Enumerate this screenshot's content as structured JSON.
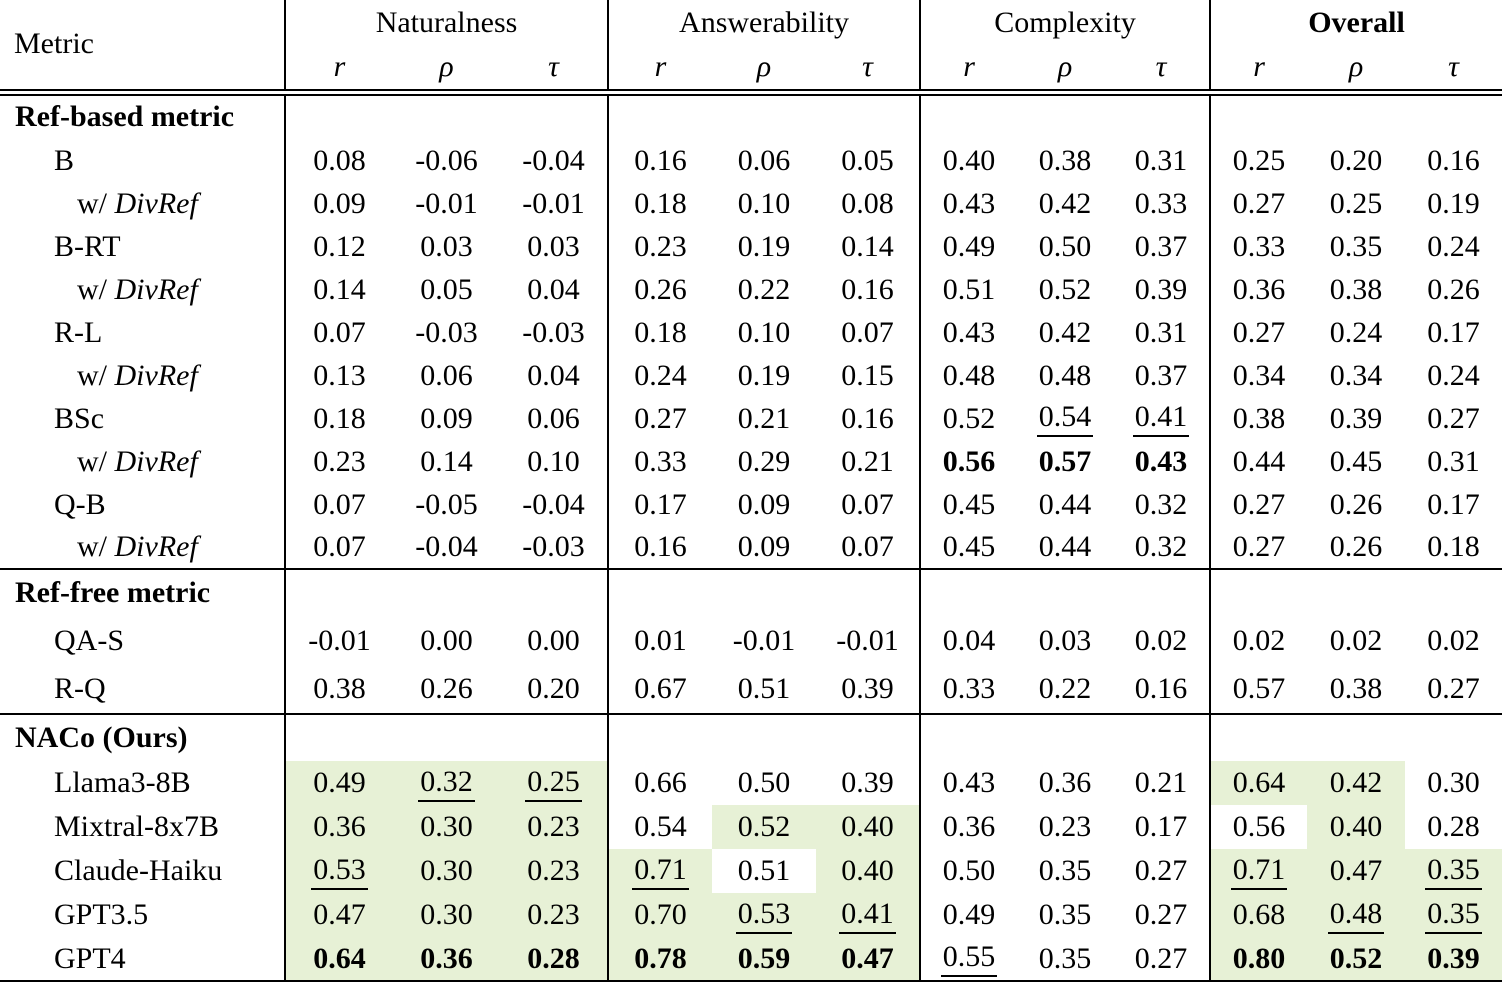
{
  "colors": {
    "highlight": "#e7f1d6",
    "text": "#000000",
    "rule": "#000000"
  },
  "header": {
    "metric_label": "Metric",
    "groups": [
      {
        "label": "Naturalness",
        "bold": false
      },
      {
        "label": "Answerability",
        "bold": false
      },
      {
        "label": "Complexity",
        "bold": false
      },
      {
        "label": "Overall",
        "bold": true
      }
    ],
    "subcols": [
      "r",
      "ρ",
      "τ"
    ]
  },
  "sections": [
    {
      "title": "Ref-based metric",
      "rows": [
        {
          "label": "B",
          "indent": 1,
          "cells": [
            {
              "v": "0.08"
            },
            {
              "v": "-0.06"
            },
            {
              "v": "-0.04"
            },
            {
              "v": "0.16"
            },
            {
              "v": "0.06"
            },
            {
              "v": "0.05"
            },
            {
              "v": "0.40"
            },
            {
              "v": "0.38"
            },
            {
              "v": "0.31"
            },
            {
              "v": "0.25"
            },
            {
              "v": "0.20"
            },
            {
              "v": "0.16"
            }
          ]
        },
        {
          "label_prefix": "w/",
          "label": "DivRef",
          "indent": 2,
          "cells": [
            {
              "v": "0.09"
            },
            {
              "v": "-0.01"
            },
            {
              "v": "-0.01"
            },
            {
              "v": "0.18"
            },
            {
              "v": "0.10"
            },
            {
              "v": "0.08"
            },
            {
              "v": "0.43"
            },
            {
              "v": "0.42"
            },
            {
              "v": "0.33"
            },
            {
              "v": "0.27"
            },
            {
              "v": "0.25"
            },
            {
              "v": "0.19"
            }
          ]
        },
        {
          "label": "B-RT",
          "indent": 1,
          "cells": [
            {
              "v": "0.12"
            },
            {
              "v": "0.03"
            },
            {
              "v": "0.03"
            },
            {
              "v": "0.23"
            },
            {
              "v": "0.19"
            },
            {
              "v": "0.14"
            },
            {
              "v": "0.49"
            },
            {
              "v": "0.50"
            },
            {
              "v": "0.37"
            },
            {
              "v": "0.33"
            },
            {
              "v": "0.35"
            },
            {
              "v": "0.24"
            }
          ]
        },
        {
          "label_prefix": "w/",
          "label": "DivRef",
          "indent": 2,
          "cells": [
            {
              "v": "0.14"
            },
            {
              "v": "0.05"
            },
            {
              "v": "0.04"
            },
            {
              "v": "0.26"
            },
            {
              "v": "0.22"
            },
            {
              "v": "0.16"
            },
            {
              "v": "0.51"
            },
            {
              "v": "0.52"
            },
            {
              "v": "0.39"
            },
            {
              "v": "0.36"
            },
            {
              "v": "0.38"
            },
            {
              "v": "0.26"
            }
          ]
        },
        {
          "label": "R-L",
          "indent": 1,
          "cells": [
            {
              "v": "0.07"
            },
            {
              "v": "-0.03"
            },
            {
              "v": "-0.03"
            },
            {
              "v": "0.18"
            },
            {
              "v": "0.10"
            },
            {
              "v": "0.07"
            },
            {
              "v": "0.43"
            },
            {
              "v": "0.42"
            },
            {
              "v": "0.31"
            },
            {
              "v": "0.27"
            },
            {
              "v": "0.24"
            },
            {
              "v": "0.17"
            }
          ]
        },
        {
          "label_prefix": "w/",
          "label": "DivRef",
          "indent": 2,
          "cells": [
            {
              "v": "0.13"
            },
            {
              "v": "0.06"
            },
            {
              "v": "0.04"
            },
            {
              "v": "0.24"
            },
            {
              "v": "0.19"
            },
            {
              "v": "0.15"
            },
            {
              "v": "0.48"
            },
            {
              "v": "0.48"
            },
            {
              "v": "0.37"
            },
            {
              "v": "0.34"
            },
            {
              "v": "0.34"
            },
            {
              "v": "0.24"
            }
          ]
        },
        {
          "label": "BSc",
          "indent": 1,
          "cells": [
            {
              "v": "0.18"
            },
            {
              "v": "0.09"
            },
            {
              "v": "0.06"
            },
            {
              "v": "0.27"
            },
            {
              "v": "0.21"
            },
            {
              "v": "0.16"
            },
            {
              "v": "0.52"
            },
            {
              "v": "0.54",
              "u": true
            },
            {
              "v": "0.41",
              "u": true
            },
            {
              "v": "0.38"
            },
            {
              "v": "0.39"
            },
            {
              "v": "0.27"
            }
          ]
        },
        {
          "label_prefix": "w/",
          "label": "DivRef",
          "indent": 2,
          "cells": [
            {
              "v": "0.23"
            },
            {
              "v": "0.14"
            },
            {
              "v": "0.10"
            },
            {
              "v": "0.33"
            },
            {
              "v": "0.29"
            },
            {
              "v": "0.21"
            },
            {
              "v": "0.56",
              "b": true
            },
            {
              "v": "0.57",
              "b": true
            },
            {
              "v": "0.43",
              "b": true
            },
            {
              "v": "0.44"
            },
            {
              "v": "0.45"
            },
            {
              "v": "0.31"
            }
          ]
        },
        {
          "label": "Q-B",
          "indent": 1,
          "cells": [
            {
              "v": "0.07"
            },
            {
              "v": "-0.05"
            },
            {
              "v": "-0.04"
            },
            {
              "v": "0.17"
            },
            {
              "v": "0.09"
            },
            {
              "v": "0.07"
            },
            {
              "v": "0.45"
            },
            {
              "v": "0.44"
            },
            {
              "v": "0.32"
            },
            {
              "v": "0.27"
            },
            {
              "v": "0.26"
            },
            {
              "v": "0.17"
            }
          ]
        },
        {
          "label_prefix": "w/",
          "label": "DivRef",
          "indent": 2,
          "cells": [
            {
              "v": "0.07"
            },
            {
              "v": "-0.04"
            },
            {
              "v": "-0.03"
            },
            {
              "v": "0.16"
            },
            {
              "v": "0.09"
            },
            {
              "v": "0.07"
            },
            {
              "v": "0.45"
            },
            {
              "v": "0.44"
            },
            {
              "v": "0.32"
            },
            {
              "v": "0.27"
            },
            {
              "v": "0.26"
            },
            {
              "v": "0.18"
            }
          ]
        }
      ]
    },
    {
      "title": "Ref-free metric",
      "rows": [
        {
          "label": "QA-S",
          "indent": 1,
          "cells": [
            {
              "v": "-0.01"
            },
            {
              "v": "0.00"
            },
            {
              "v": "0.00"
            },
            {
              "v": "0.01"
            },
            {
              "v": "-0.01"
            },
            {
              "v": "-0.01"
            },
            {
              "v": "0.04"
            },
            {
              "v": "0.03"
            },
            {
              "v": "0.02"
            },
            {
              "v": "0.02"
            },
            {
              "v": "0.02"
            },
            {
              "v": "0.02"
            }
          ]
        },
        {
          "label": "R-Q",
          "indent": 1,
          "cells": [
            {
              "v": "0.38"
            },
            {
              "v": "0.26"
            },
            {
              "v": "0.20"
            },
            {
              "v": "0.67"
            },
            {
              "v": "0.51"
            },
            {
              "v": "0.39"
            },
            {
              "v": "0.33"
            },
            {
              "v": "0.22"
            },
            {
              "v": "0.16"
            },
            {
              "v": "0.57"
            },
            {
              "v": "0.38"
            },
            {
              "v": "0.27"
            }
          ]
        }
      ]
    },
    {
      "title": "NACo (Ours)",
      "rows": [
        {
          "label": "Llama3-8B",
          "indent": 1,
          "cells": [
            {
              "v": "0.49",
              "h": true
            },
            {
              "v": "0.32",
              "u": true,
              "h": true
            },
            {
              "v": "0.25",
              "u": true,
              "h": true
            },
            {
              "v": "0.66"
            },
            {
              "v": "0.50"
            },
            {
              "v": "0.39"
            },
            {
              "v": "0.43"
            },
            {
              "v": "0.36"
            },
            {
              "v": "0.21"
            },
            {
              "v": "0.64",
              "h": true
            },
            {
              "v": "0.42",
              "h": true
            },
            {
              "v": "0.30"
            }
          ]
        },
        {
          "label": "Mixtral-8x7B",
          "indent": 1,
          "cells": [
            {
              "v": "0.36",
              "h": true
            },
            {
              "v": "0.30",
              "h": true
            },
            {
              "v": "0.23",
              "h": true
            },
            {
              "v": "0.54"
            },
            {
              "v": "0.52",
              "h": true
            },
            {
              "v": "0.40",
              "h": true
            },
            {
              "v": "0.36"
            },
            {
              "v": "0.23"
            },
            {
              "v": "0.17"
            },
            {
              "v": "0.56"
            },
            {
              "v": "0.40",
              "h": true
            },
            {
              "v": "0.28"
            }
          ]
        },
        {
          "label": "Claude-Haiku",
          "indent": 1,
          "cells": [
            {
              "v": "0.53",
              "u": true,
              "h": true
            },
            {
              "v": "0.30",
              "h": true
            },
            {
              "v": "0.23",
              "h": true
            },
            {
              "v": "0.71",
              "u": true,
              "h": true
            },
            {
              "v": "0.51"
            },
            {
              "v": "0.40",
              "h": true
            },
            {
              "v": "0.50"
            },
            {
              "v": "0.35"
            },
            {
              "v": "0.27"
            },
            {
              "v": "0.71",
              "u": true,
              "h": true
            },
            {
              "v": "0.47",
              "h": true
            },
            {
              "v": "0.35",
              "u": true,
              "h": true
            }
          ]
        },
        {
          "label": "GPT3.5",
          "indent": 1,
          "cells": [
            {
              "v": "0.47",
              "h": true
            },
            {
              "v": "0.30",
              "h": true
            },
            {
              "v": "0.23",
              "h": true
            },
            {
              "v": "0.70",
              "h": true
            },
            {
              "v": "0.53",
              "u": true,
              "h": true
            },
            {
              "v": "0.41",
              "u": true,
              "h": true
            },
            {
              "v": "0.49"
            },
            {
              "v": "0.35"
            },
            {
              "v": "0.27"
            },
            {
              "v": "0.68",
              "h": true
            },
            {
              "v": "0.48",
              "u": true,
              "h": true
            },
            {
              "v": "0.35",
              "u": true,
              "h": true
            }
          ]
        },
        {
          "label": "GPT4",
          "indent": 1,
          "cells": [
            {
              "v": "0.64",
              "b": true,
              "h": true
            },
            {
              "v": "0.36",
              "b": true,
              "h": true
            },
            {
              "v": "0.28",
              "b": true,
              "h": true
            },
            {
              "v": "0.78",
              "b": true,
              "h": true
            },
            {
              "v": "0.59",
              "b": true,
              "h": true
            },
            {
              "v": "0.47",
              "b": true,
              "h": true
            },
            {
              "v": "0.55",
              "u": true
            },
            {
              "v": "0.35"
            },
            {
              "v": "0.27"
            },
            {
              "v": "0.80",
              "b": true,
              "h": true
            },
            {
              "v": "0.52",
              "b": true,
              "h": true
            },
            {
              "v": "0.39",
              "b": true,
              "h": true
            }
          ]
        }
      ]
    }
  ]
}
